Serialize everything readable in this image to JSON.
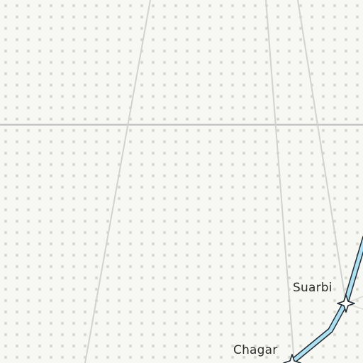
{
  "map": {
    "colors": {
      "background": "#f7f7f3",
      "dot": "#d9d9cf",
      "road": "#cfcfcf",
      "road_major": "#c4c4c4",
      "river_fill": "#aee0f2",
      "river_stroke": "#1f2a33",
      "marker_fill": "#ffffff",
      "marker_stroke": "#1f2a33",
      "label_text": "#2f2f2f"
    },
    "places": [
      {
        "name": "Suarbi",
        "marker": "star-marker-icon"
      },
      {
        "name": "Chagar",
        "marker": "star-marker-icon"
      }
    ]
  }
}
